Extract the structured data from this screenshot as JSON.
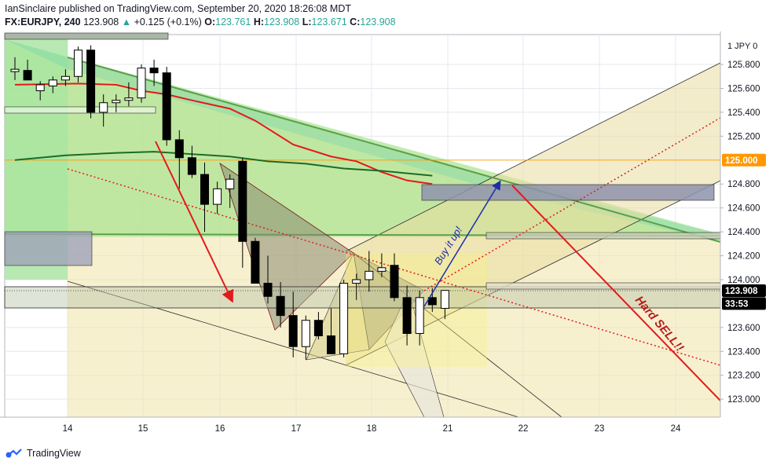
{
  "header": {
    "publisher_line": "IanSinclaire published on TradingView.com, September 20, 2020 18:26:08 MDT",
    "symbol": "FX:EURJPY, 240",
    "last": "123.908",
    "arrow": "▲",
    "change": "+0.125 (+0.1%)",
    "o_label": "O:",
    "o_value": "123.761",
    "h_label": "H:",
    "h_value": "123.908",
    "l_label": "L:",
    "l_value": "123.671",
    "c_label": "C:",
    "c_value": "123.908"
  },
  "footer": {
    "brand": "TradingView"
  },
  "colors": {
    "up_candle": "#ffffff",
    "down_candle": "#000000",
    "sma_fast": "#e31a1c",
    "sma_slow": "#1e6b27",
    "sell_arrow": "#e31a1c",
    "buy_arrow": "#1b2fa8",
    "annotation_sell": "#b71c1c",
    "annotation_buy": "#1b2fa8"
  },
  "chart_data": {
    "type": "candlestick",
    "y_axis": {
      "unit_label": "1  JPY  0",
      "ticks": [
        "125.800",
        "125.600",
        "125.400",
        "125.200",
        "124.800",
        "124.600",
        "124.400",
        "124.200",
        "124.000",
        "123.600",
        "123.400",
        "123.200",
        "123.000"
      ],
      "ylim": [
        122.85,
        126.05
      ]
    },
    "x_axis": {
      "ticks": [
        "14",
        "15",
        "16",
        "17",
        "18",
        "21",
        "22",
        "23",
        "24"
      ]
    },
    "price_tags": [
      {
        "text": "125.000",
        "price": 125.0,
        "bg": "#ff9800",
        "fg": "#ffffff"
      },
      {
        "text": "123.908",
        "price": 123.908,
        "bg": "#000000",
        "fg": "#ffffff"
      },
      {
        "text": "33:53",
        "price": 123.8,
        "bg": "#000000",
        "fg": "#ffffff"
      }
    ],
    "candles": [
      [
        125.74,
        125.86,
        125.67,
        125.76
      ],
      [
        125.75,
        125.84,
        125.68,
        125.67
      ],
      [
        125.58,
        125.66,
        125.5,
        125.63
      ],
      [
        125.62,
        125.7,
        125.56,
        125.67
      ],
      [
        125.67,
        125.76,
        125.62,
        125.7
      ],
      [
        125.7,
        125.95,
        125.65,
        125.92
      ],
      [
        125.92,
        125.96,
        125.35,
        125.4
      ],
      [
        125.4,
        125.55,
        125.28,
        125.48
      ],
      [
        125.48,
        125.55,
        125.4,
        125.5
      ],
      [
        125.5,
        125.65,
        125.45,
        125.52
      ],
      [
        125.52,
        125.8,
        125.48,
        125.77
      ],
      [
        125.77,
        125.84,
        125.62,
        125.73
      ],
      [
        125.73,
        125.78,
        125.12,
        125.17
      ],
      [
        125.17,
        125.25,
        124.76,
        125.02
      ],
      [
        125.02,
        125.12,
        124.85,
        124.88
      ],
      [
        124.88,
        124.98,
        124.4,
        124.63
      ],
      [
        124.63,
        124.82,
        124.55,
        124.76
      ],
      [
        124.76,
        124.88,
        124.6,
        124.84
      ],
      [
        124.99,
        125.02,
        124.1,
        124.32
      ],
      [
        124.32,
        124.35,
        123.97,
        123.97
      ],
      [
        123.97,
        124.2,
        123.8,
        123.86
      ],
      [
        123.86,
        123.98,
        123.6,
        123.7
      ],
      [
        123.7,
        123.9,
        123.35,
        123.44
      ],
      [
        123.44,
        123.7,
        123.33,
        123.66
      ],
      [
        123.66,
        123.73,
        123.5,
        123.53
      ],
      [
        123.53,
        123.76,
        123.38,
        123.38
      ],
      [
        123.38,
        124.0,
        123.35,
        123.97
      ],
      [
        123.97,
        124.05,
        123.83,
        124.0
      ],
      [
        124.0,
        124.24,
        123.9,
        124.07
      ],
      [
        124.07,
        124.22,
        124.02,
        124.1
      ],
      [
        124.12,
        124.22,
        123.82,
        123.85
      ],
      [
        123.85,
        123.95,
        123.45,
        123.55
      ],
      [
        123.55,
        123.91,
        123.45,
        123.85
      ],
      [
        123.85,
        123.93,
        123.73,
        123.79
      ],
      [
        123.76,
        123.91,
        123.67,
        123.91
      ]
    ],
    "sma_fast": [
      [
        0,
        125.63
      ],
      [
        5,
        125.64
      ],
      [
        8,
        125.63
      ],
      [
        10,
        125.58
      ],
      [
        12,
        125.55
      ],
      [
        14,
        125.5
      ],
      [
        17,
        125.43
      ],
      [
        19,
        125.33
      ],
      [
        22,
        125.13
      ],
      [
        25,
        125.03
      ],
      [
        27,
        124.99
      ],
      [
        29,
        124.9
      ],
      [
        31,
        124.83
      ],
      [
        33,
        124.8
      ]
    ],
    "sma_slow": [
      [
        0,
        125.0
      ],
      [
        4,
        125.04
      ],
      [
        8,
        125.06
      ],
      [
        11,
        125.07
      ],
      [
        14,
        125.05
      ],
      [
        17,
        125.03
      ],
      [
        20,
        124.99
      ],
      [
        23,
        124.97
      ],
      [
        26,
        124.93
      ],
      [
        29,
        124.91
      ],
      [
        33,
        124.87
      ]
    ],
    "annotations": [
      {
        "text": "Hard SELL!!",
        "color": "#b71c1c"
      },
      {
        "text": "Buy it up!",
        "color": "#1b2fa8"
      }
    ]
  }
}
